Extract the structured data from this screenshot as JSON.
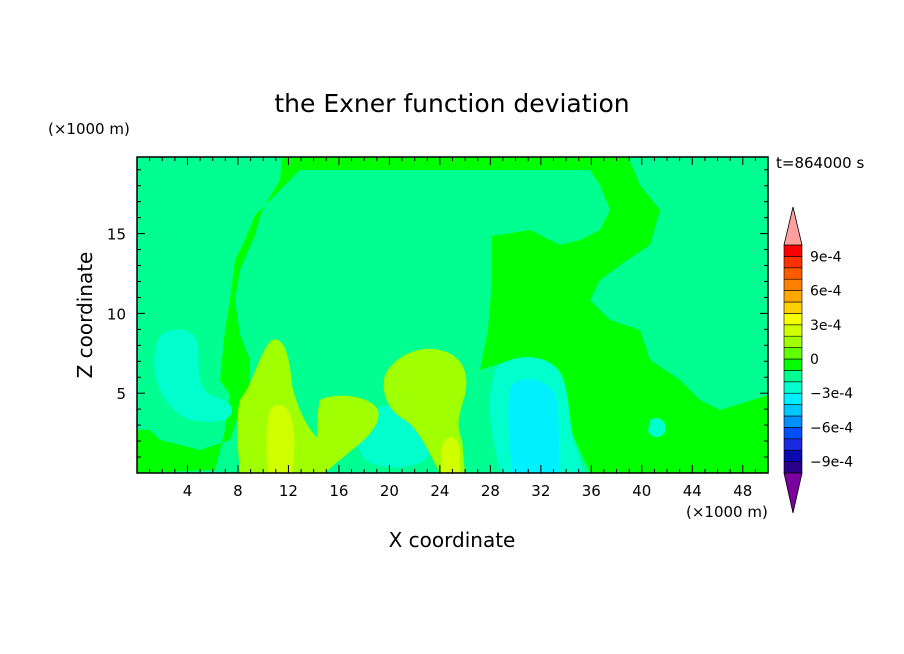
{
  "chart_data": {
    "type": "heatmap",
    "title": "the Exner function deviation",
    "xlabel": "X coordinate",
    "ylabel": "Z coordinate",
    "x_unit": "(×1000 m)",
    "y_unit": "(×1000 m)",
    "time_label": "t=864000 s",
    "xlim": [
      0,
      50
    ],
    "ylim": [
      0,
      19.8
    ],
    "x_ticks": [
      4,
      8,
      12,
      16,
      20,
      24,
      28,
      32,
      36,
      40,
      44,
      48
    ],
    "y_ticks": [
      5,
      10,
      15
    ],
    "colorbar": {
      "levels": [
        -0.0011,
        -0.001,
        -0.0009,
        -0.0008,
        -0.0007,
        -0.0006,
        -0.0005,
        -0.0004,
        -0.0003,
        -0.0002,
        -0.0001,
        0,
        0.0001,
        0.0002,
        0.0003,
        0.0004,
        0.0005,
        0.0006,
        0.0007,
        0.0008,
        0.0009,
        0.001,
        0.0011
      ],
      "tick_labels": [
        "9e-4",
        "6e-4",
        "3e-4",
        "0",
        "−3e-4",
        "−6e-4",
        "−9e-4"
      ],
      "tick_values": [
        0.0009,
        0.0006,
        0.0003,
        0,
        -0.0003,
        -0.0006,
        -0.0009
      ],
      "colors": [
        "#7a00a0",
        "#2a0088",
        "#0a0ab0",
        "#1a2ae0",
        "#0050ff",
        "#0090ff",
        "#00c8ff",
        "#00f0ff",
        "#00ffcc",
        "#00ff90",
        "#00ff00",
        "#60ff00",
        "#a0ff00",
        "#d0ff00",
        "#f8ff00",
        "#ffd000",
        "#ffa800",
        "#ff8000",
        "#ff5a00",
        "#ff3000",
        "#ff0000",
        "#ffa0a0"
      ],
      "extend": "both"
    },
    "regions": [
      {
        "level": "0 to 1e-4 (green)",
        "description": "upper middle domain x≈8–40, z≈5–19.8 and surface patches"
      },
      {
        "level": "-1e-4 to 0 (teal)",
        "description": "left top x≈0–8, right x≈37–50, central column x≈27–40"
      },
      {
        "level": "-2e-4 to -1e-4 (aqua)",
        "description": "left blob near x≈2–6, z≈3–8; lower center x≈18–22"
      },
      {
        "level": "-3e-4 to -2e-4 (cyan)",
        "description": "column centered x≈32, z≈0–5"
      },
      {
        "level": "1e-4 to 3e-4 (yellow-green)",
        "description": "lower blobs x≈10–14 and x≈18–26, z≈0–8"
      }
    ]
  }
}
